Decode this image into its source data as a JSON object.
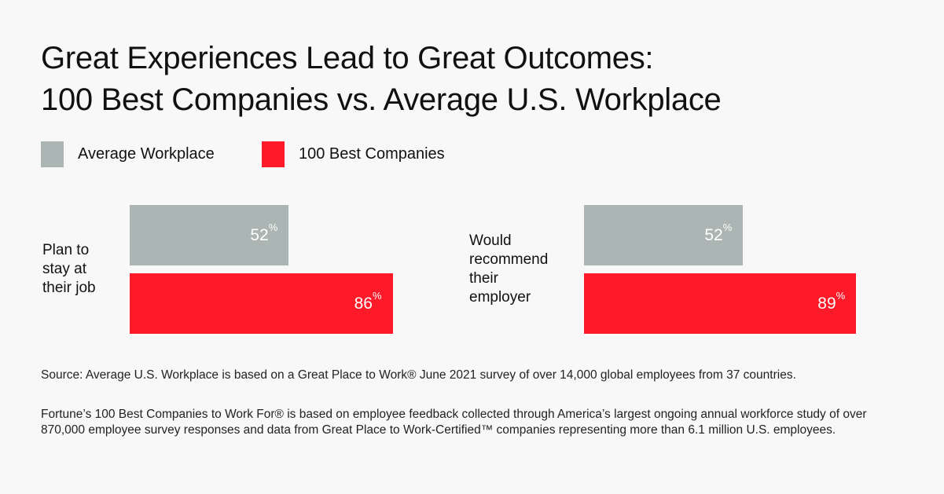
{
  "chart_data": {
    "type": "bar",
    "orientation": "horizontal",
    "title": [
      "Great Experiences Lead to Great Outcomes:",
      "100 Best Companies vs. Average U.S. Workplace"
    ],
    "categories": [
      "Plan to stay at their job",
      "Would recommend their employer"
    ],
    "category_lines": [
      [
        "Plan to",
        "stay at",
        "their job"
      ],
      [
        "Would",
        "recommend",
        "their",
        "employer"
      ]
    ],
    "series": [
      {
        "name": "Average Workplace",
        "values": [
          52,
          52
        ],
        "color": "#abb5b3"
      },
      {
        "name": "100 Best Companies",
        "values": [
          86,
          89
        ],
        "color": "#ff1a2a"
      }
    ],
    "unit": "%",
    "xlim": [
      0,
      100
    ],
    "grid": false,
    "legend_position": "top-left"
  },
  "source": [
    "Source: Average U.S. Workplace is based on a Great Place to Work® June 2021 survey of over 14,000 global employees from 37 countries.",
    "Fortune’s 100 Best Companies to Work For® is based on employee feedback collected through America’s largest ongoing annual workforce study of over 870,000 employee survey responses and data from Great Place to Work-Certified™ companies representing more than 6.1 million U.S. employees."
  ]
}
